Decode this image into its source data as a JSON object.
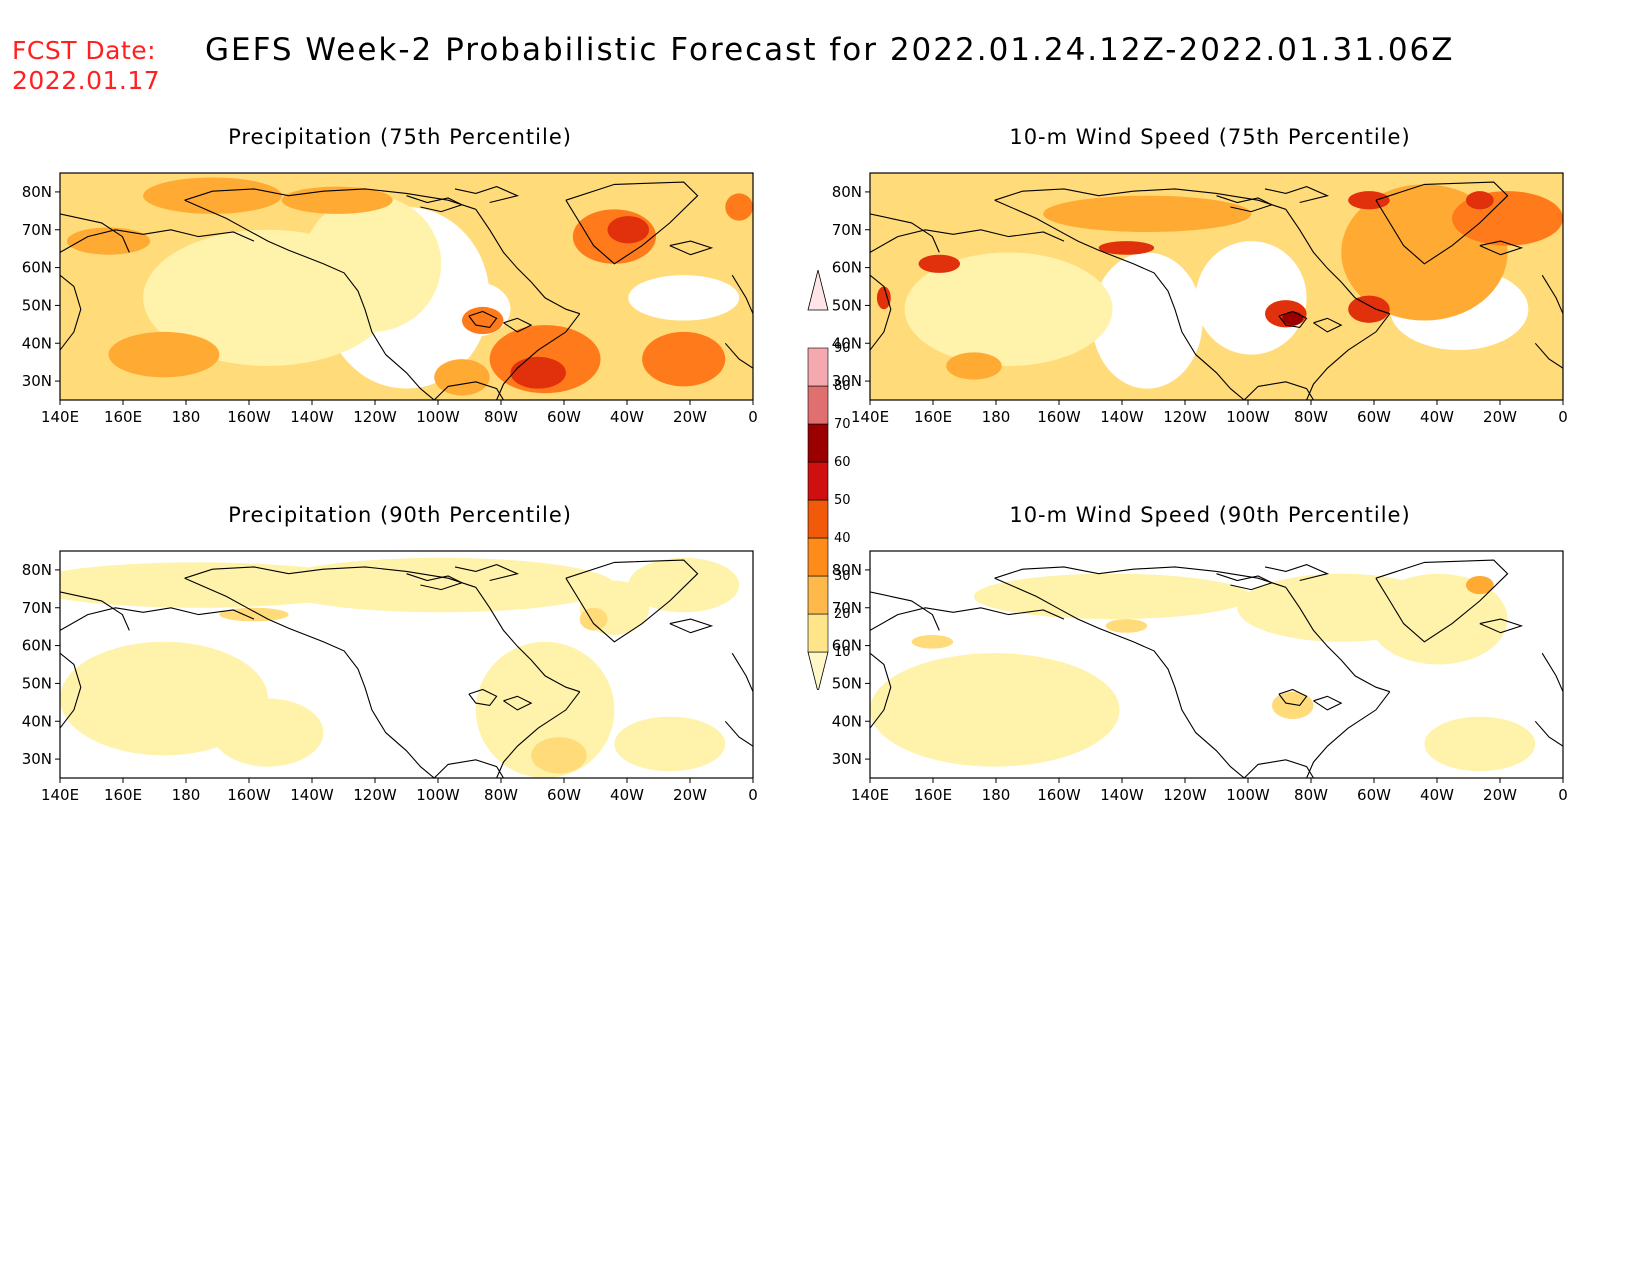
{
  "header": {
    "fcst_label": "FCST Date:",
    "fcst_date": "2022.01.17",
    "title": "GEFS Week-2 Probabilistic Forecast for 2022.01.24.12Z-2022.01.31.06Z"
  },
  "panels": [
    {
      "title": "Precipitation (75th Percentile)",
      "level": "p75"
    },
    {
      "title": "10-m Wind Speed (75th Percentile)",
      "level": "w75"
    },
    {
      "title": "Precipitation (90th Percentile)",
      "level": "p90"
    },
    {
      "title": "10-m Wind Speed (90th Percentile)",
      "level": "w90"
    }
  ],
  "axes": {
    "lon_ticks": [
      "140E",
      "160E",
      "180",
      "160W",
      "140W",
      "120W",
      "100W",
      "80W",
      "60W",
      "40W",
      "20W",
      "0"
    ],
    "lat_ticks": [
      "80N",
      "70N",
      "60N",
      "50N",
      "40N",
      "30N"
    ]
  },
  "colorbar": {
    "levels": [
      "10",
      "20",
      "30",
      "40",
      "50",
      "60",
      "70",
      "80",
      "90"
    ],
    "colors": [
      "#fff7c8",
      "#ffe58a",
      "#ffb84a",
      "#ff8c1a",
      "#f05a0a",
      "#d01010",
      "#9a0000",
      "#e07070",
      "#f4a8b0",
      "#ffe4e8"
    ]
  },
  "colors": {
    "white": "#ffffff",
    "yellow": "#fff2aa",
    "light_orange": "#ffdb7a",
    "orange": "#ffaa33",
    "dark_orange": "#ff7a1a",
    "red": "#e0300c",
    "dark_red": "#9a0000",
    "coast": "#000000",
    "fcst_red": "#ff2020"
  }
}
